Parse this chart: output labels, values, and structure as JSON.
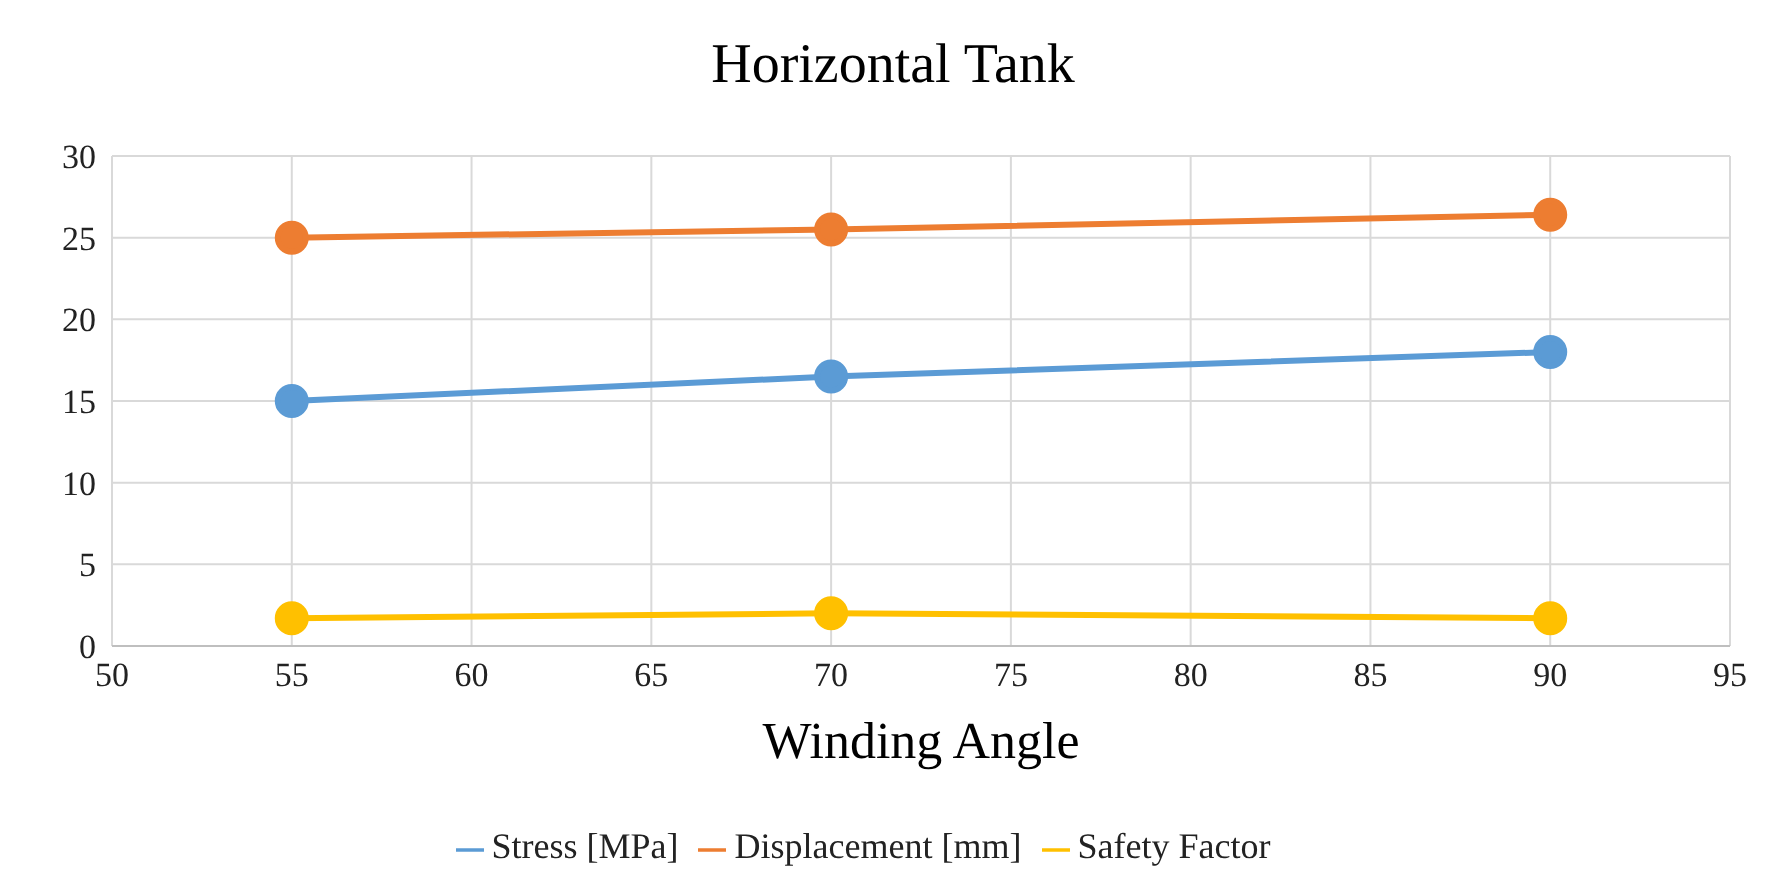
{
  "chart_data": {
    "type": "line",
    "title": "Horizontal Tank",
    "xlabel": "Winding Angle",
    "x": [
      55,
      70,
      90
    ],
    "series": [
      {
        "name": "Stress [MPa]",
        "color": "#5b9bd5",
        "values": [
          15,
          16.5,
          18
        ]
      },
      {
        "name": "Displacement [mm]",
        "color": "#ed7d31",
        "values": [
          25,
          25.5,
          26.4
        ]
      },
      {
        "name": "Safety Factor",
        "color": "#ffc000",
        "values": [
          1.7,
          2,
          1.7
        ]
      }
    ],
    "xlim": [
      50,
      95
    ],
    "xticks": [
      50,
      55,
      60,
      65,
      70,
      75,
      80,
      85,
      90,
      95
    ],
    "ylim": [
      0,
      30
    ],
    "yticks": [
      0,
      5,
      10,
      15,
      20,
      25,
      30
    ],
    "grid": true,
    "legend": "bottom",
    "marker": "circle",
    "line_style": "solid"
  }
}
